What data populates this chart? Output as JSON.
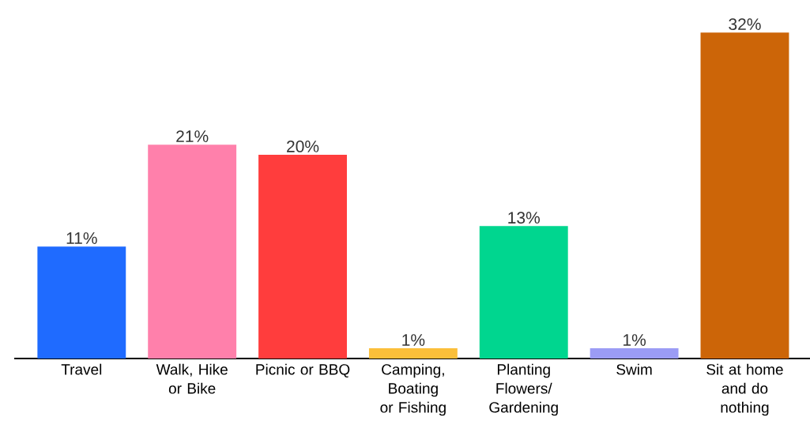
{
  "chart_data": {
    "type": "bar",
    "categories": [
      "Travel",
      "Walk, Hike or Bike",
      "Picnic or BBQ",
      "Camping, Boating or Fishing",
      "Planting Flowers/ Gardening",
      "Swim",
      "Sit at home and do nothing"
    ],
    "values": [
      11,
      21,
      20,
      1,
      13,
      1,
      32
    ],
    "value_labels": [
      "11%",
      "21%",
      "20%",
      "1%",
      "13%",
      "1%",
      "32%"
    ],
    "colors": [
      "#1f6bff",
      "#ff80ab",
      "#ff3d3d",
      "#fbbf3a",
      "#00d68f",
      "#9b9cf5",
      "#cc6508"
    ]
  }
}
